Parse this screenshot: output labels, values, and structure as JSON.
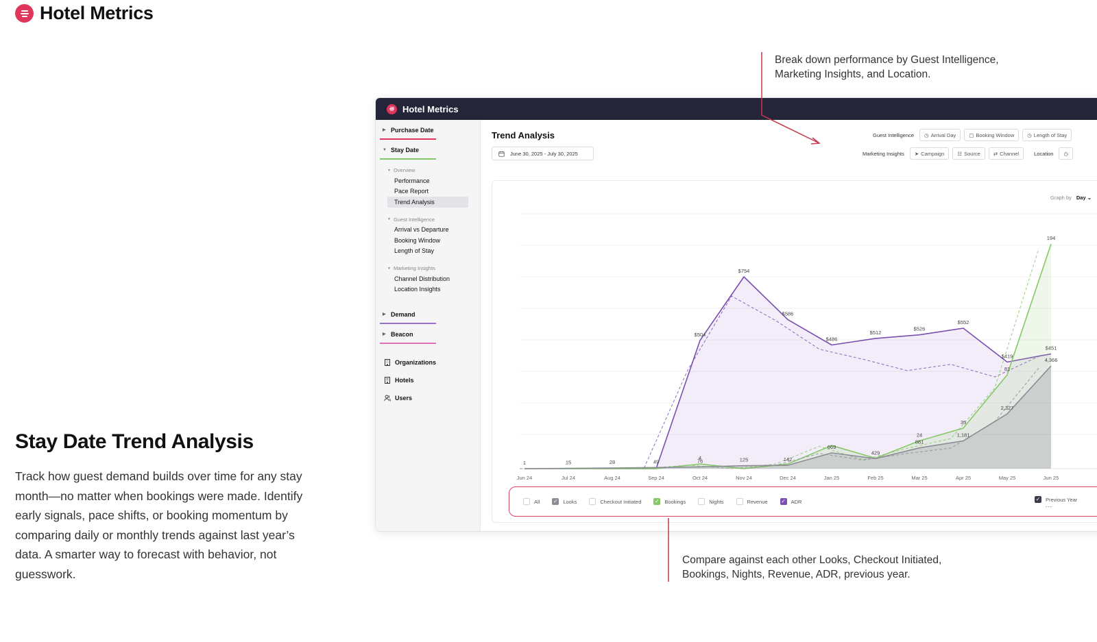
{
  "brand": {
    "name": "Hotel Metrics"
  },
  "hero": {
    "title": "Stay Date Trend Analysis",
    "description": "Track how guest demand builds over time for any stay month—no matter when bookings were made. Identify early signals, pace shifts, or booking momentum by comparing daily or monthly trends against last year’s data. A smarter way to forecast with behavior, not guesswork."
  },
  "callouts": {
    "top": "Break down performance by Guest Intelligence, Marketing Insights, and Location.",
    "bottom": "Compare against each other Looks, Checkout Initiated, Bookings, Nights, Revenue, ADR, previous year."
  },
  "app": {
    "title": "Hotel Metrics",
    "sidebar": {
      "sections": [
        {
          "label": "Purchase Date",
          "color": "#e0355a"
        },
        {
          "label": "Stay Date",
          "color": "#86c867"
        },
        {
          "label": "Demand",
          "color": "#9b6dd0"
        },
        {
          "label": "Beacon",
          "color": "#e070b8"
        }
      ],
      "overview": {
        "label": "Overview",
        "items": [
          "Performance",
          "Pace Report",
          "Trend Analysis"
        ]
      },
      "guest_intelligence": {
        "label": "Guest Intelligence",
        "items": [
          "Arrival vs Departure",
          "Booking Window",
          "Length of Stay"
        ]
      },
      "marketing_insights": {
        "label": "Marketing Insights",
        "items": [
          "Channel Distribution",
          "Location Insights"
        ]
      },
      "links": [
        "Organizations",
        "Hotels",
        "Users"
      ]
    },
    "main": {
      "title": "Trend Analysis",
      "date_range": "June 30, 2025 - July 30, 2025",
      "filters": {
        "guest_label": "Guest Intelligence",
        "guest_chips": [
          "Arrival Day",
          "Booking Window",
          "Length of Stay"
        ],
        "marketing_label": "Marketing Insights",
        "marketing_chips": [
          "Campaign",
          "Source",
          "Channel"
        ],
        "location_label": "Location"
      },
      "graph_by": {
        "label": "Graph by",
        "value": "Day"
      },
      "legend": {
        "items": [
          {
            "label": "All",
            "checked": false
          },
          {
            "label": "Looks",
            "checked": true
          },
          {
            "label": "Checkout Initiated",
            "checked": false
          },
          {
            "label": "Bookings",
            "checked": true
          },
          {
            "label": "Nights",
            "checked": false
          },
          {
            "label": "Revenue",
            "checked": false
          },
          {
            "label": "ADR",
            "checked": true
          }
        ],
        "previous_year": "Previous Year",
        "previous_year_marker": "---"
      }
    }
  },
  "chart_data": {
    "type": "line",
    "x": [
      "Jun 24",
      "Jul 24",
      "Aug 24",
      "Sep 24",
      "Oct 24",
      "Nov 24",
      "Dec 24",
      "Jan 25",
      "Feb 25",
      "Mar 25",
      "Apr 25",
      "May 25",
      "Jun 25"
    ],
    "series": [
      {
        "name": "ADR",
        "color": "#7a4fb0",
        "values": [
          0,
          0,
          0,
          0,
          504,
          754,
          586,
          486,
          512,
          526,
          552,
          419,
          451
        ],
        "labels": [
          "",
          "",
          "",
          "",
          "$504",
          "$754",
          "$586",
          "$486",
          "$512",
          "$526",
          "$552",
          "$419",
          "$451"
        ]
      },
      {
        "name": "Bookings",
        "color": "#86c867",
        "values": [
          0,
          0,
          0,
          0,
          4,
          0,
          4,
          20,
          9,
          24,
          35,
          81,
          194
        ],
        "labels": [
          "",
          "",
          "",
          "",
          "4",
          "",
          "",
          "",
          "",
          "24",
          "35",
          "81",
          "194"
        ]
      },
      {
        "name": "Looks",
        "color": "#8d8d96",
        "values": [
          1,
          15,
          28,
          49,
          76,
          125,
          142,
          669,
          429,
          881,
          1181,
          2327,
          4366
        ],
        "labels": [
          "1",
          "15",
          "28",
          "49",
          "76",
          "125",
          "142",
          "669",
          "429",
          "881",
          "1,181",
          "2,327",
          "4,366"
        ]
      }
    ]
  }
}
